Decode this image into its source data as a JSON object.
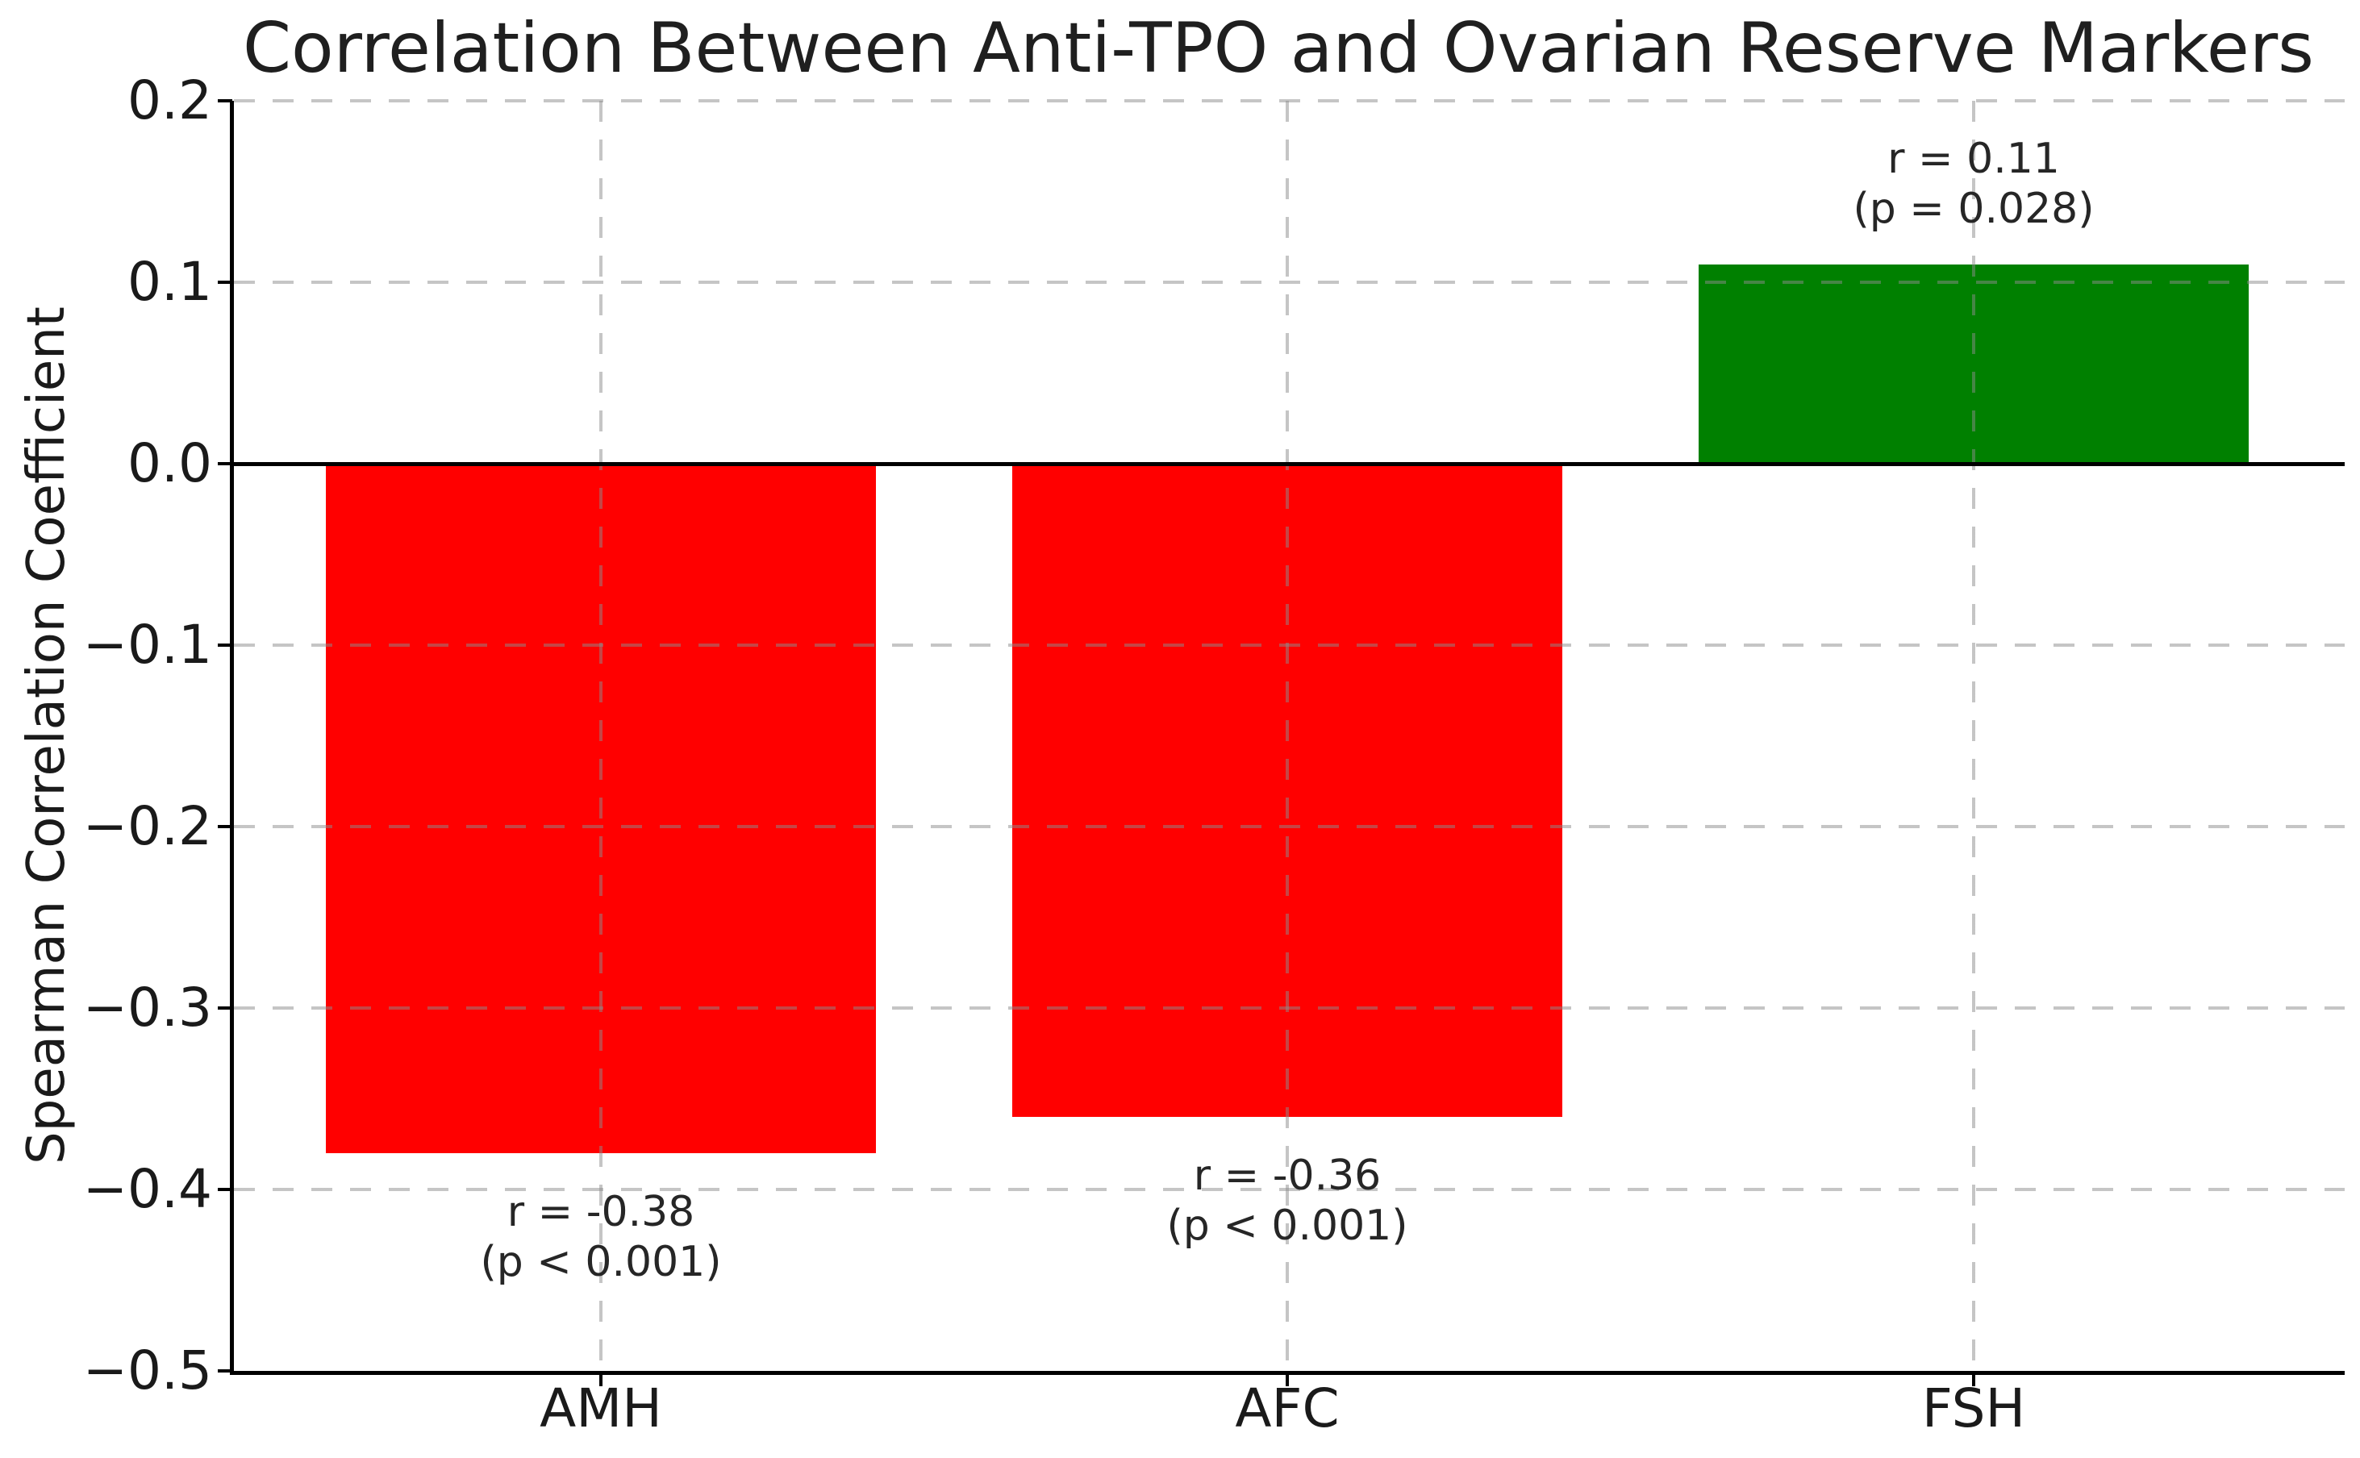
{
  "chart_data": {
    "type": "bar",
    "title": "Correlation Between Anti-TPO and Ovarian Reserve Markers",
    "ylabel": "Spearman Correlation Coefficient",
    "xlabel": "",
    "categories": [
      "AMH",
      "AFC",
      "FSH"
    ],
    "values": [
      -0.38,
      -0.36,
      0.11
    ],
    "bar_colors": [
      "#ff0000",
      "#ff0000",
      "#008000"
    ],
    "annotations": [
      {
        "lines": [
          "r = -0.38",
          "(p < 0.001)"
        ]
      },
      {
        "lines": [
          "r = -0.36",
          "(p < 0.001)"
        ]
      },
      {
        "lines": [
          "r = 0.11",
          "(p = 0.028)"
        ]
      }
    ],
    "ylim": [
      -0.5,
      0.2
    ],
    "ytick_values": [
      0.2,
      0.1,
      0.0,
      -0.1,
      -0.2,
      -0.3,
      -0.4,
      -0.5
    ],
    "ytick_labels": [
      "0.2",
      "0.1",
      "0.0",
      "−0.1",
      "−0.2",
      "−0.3",
      "−0.4",
      "−0.5"
    ],
    "grid": {
      "visible": true,
      "style": "dashed",
      "axes": "both",
      "drawn_above_bars": true
    },
    "legend": "none",
    "zero_line": true,
    "colors": {
      "negative_bar": "#ff0000",
      "positive_bar": "#008000",
      "grid": "#c6c6c6",
      "axis": "#000000",
      "text": "#1a1a1a"
    }
  }
}
